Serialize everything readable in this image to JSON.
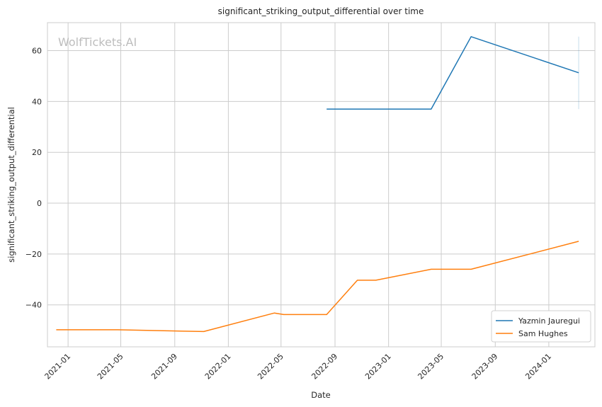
{
  "chart_data": {
    "type": "line",
    "title": "significant_striking_output_differential over time",
    "xlabel": "Date",
    "ylabel": "significant_striking_output_differential",
    "watermark": "WolfTickets.AI",
    "x_ticks": [
      "2021-01",
      "2021-05",
      "2021-09",
      "2022-01",
      "2022-05",
      "2022-09",
      "2023-01",
      "2023-05",
      "2023-09",
      "2024-01"
    ],
    "y_ticks": [
      60,
      40,
      20,
      0,
      -20,
      -40
    ],
    "y_tick_labels": [
      "60",
      "40",
      "20",
      "0",
      "−20",
      "−40"
    ],
    "xlim": [
      "2020-11-15",
      "2024-04-15"
    ],
    "ylim": [
      -56.5,
      71
    ],
    "grid": true,
    "legend_position": "lower-right",
    "series": [
      {
        "name": "Yazmin Jauregui",
        "color": "#1f77b4",
        "points": [
          [
            "2022-08-13",
            37
          ],
          [
            "2023-04-08",
            37
          ],
          [
            "2023-07-08",
            65.5
          ],
          [
            "2024-03-09",
            51.3
          ]
        ],
        "band": {
          "x": "2024-03-09",
          "low": 37,
          "high": 65.5
        }
      },
      {
        "name": "Sam Hughes",
        "color": "#ff7f0e",
        "points": [
          [
            "2020-12-05",
            -49.8
          ],
          [
            "2021-04-24",
            -49.8
          ],
          [
            "2021-11-06",
            -50.5
          ],
          [
            "2022-04-16",
            -43.2
          ],
          [
            "2022-05-07",
            -43.8
          ],
          [
            "2022-08-13",
            -43.8
          ],
          [
            "2022-10-22",
            -30.3
          ],
          [
            "2022-12-03",
            -30.3
          ],
          [
            "2023-04-08",
            -26
          ],
          [
            "2023-07-08",
            -26
          ],
          [
            "2024-03-09",
            -15
          ]
        ]
      }
    ]
  }
}
